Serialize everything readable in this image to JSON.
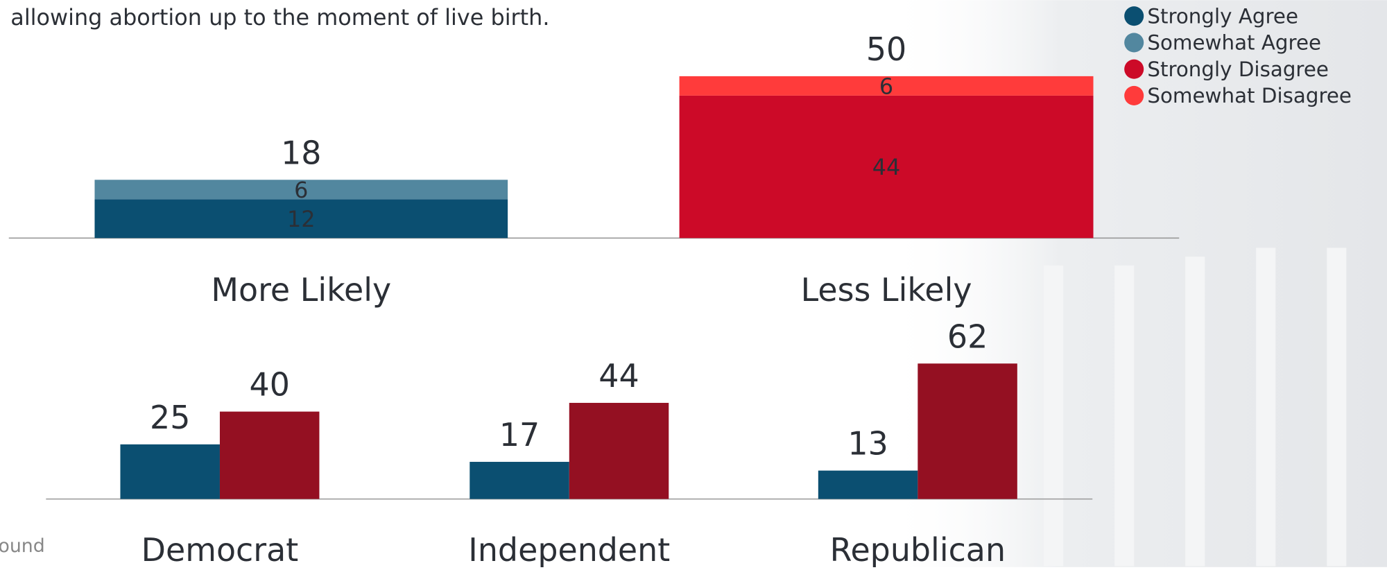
{
  "subtitle": "allowing abortion up to the moment of live birth.",
  "source": "ound",
  "chart_data": [
    {
      "type": "stacked_bar",
      "categories": [
        "More Likely",
        "Less Likely"
      ],
      "totals": [
        18,
        50
      ],
      "series": [
        {
          "name": "Strongly Agree",
          "color": "#0b4f71",
          "values": [
            12,
            null
          ]
        },
        {
          "name": "Somewhat Agree",
          "color": "#52879f",
          "values": [
            6,
            null
          ]
        },
        {
          "name": "Strongly Disagree",
          "color": "#cc0a28",
          "values": [
            null,
            44
          ]
        },
        {
          "name": "Somewhat Disagree",
          "color": "#ff3b3b",
          "values": [
            null,
            6
          ]
        }
      ],
      "legend": "top-right"
    },
    {
      "type": "grouped_bar",
      "categories": [
        "Democrat",
        "Independent",
        "Republican"
      ],
      "series": [
        {
          "color": "#0b4f71",
          "values": [
            25,
            17,
            13
          ]
        },
        {
          "color": "#941022",
          "values": [
            40,
            44,
            62
          ]
        }
      ]
    }
  ]
}
